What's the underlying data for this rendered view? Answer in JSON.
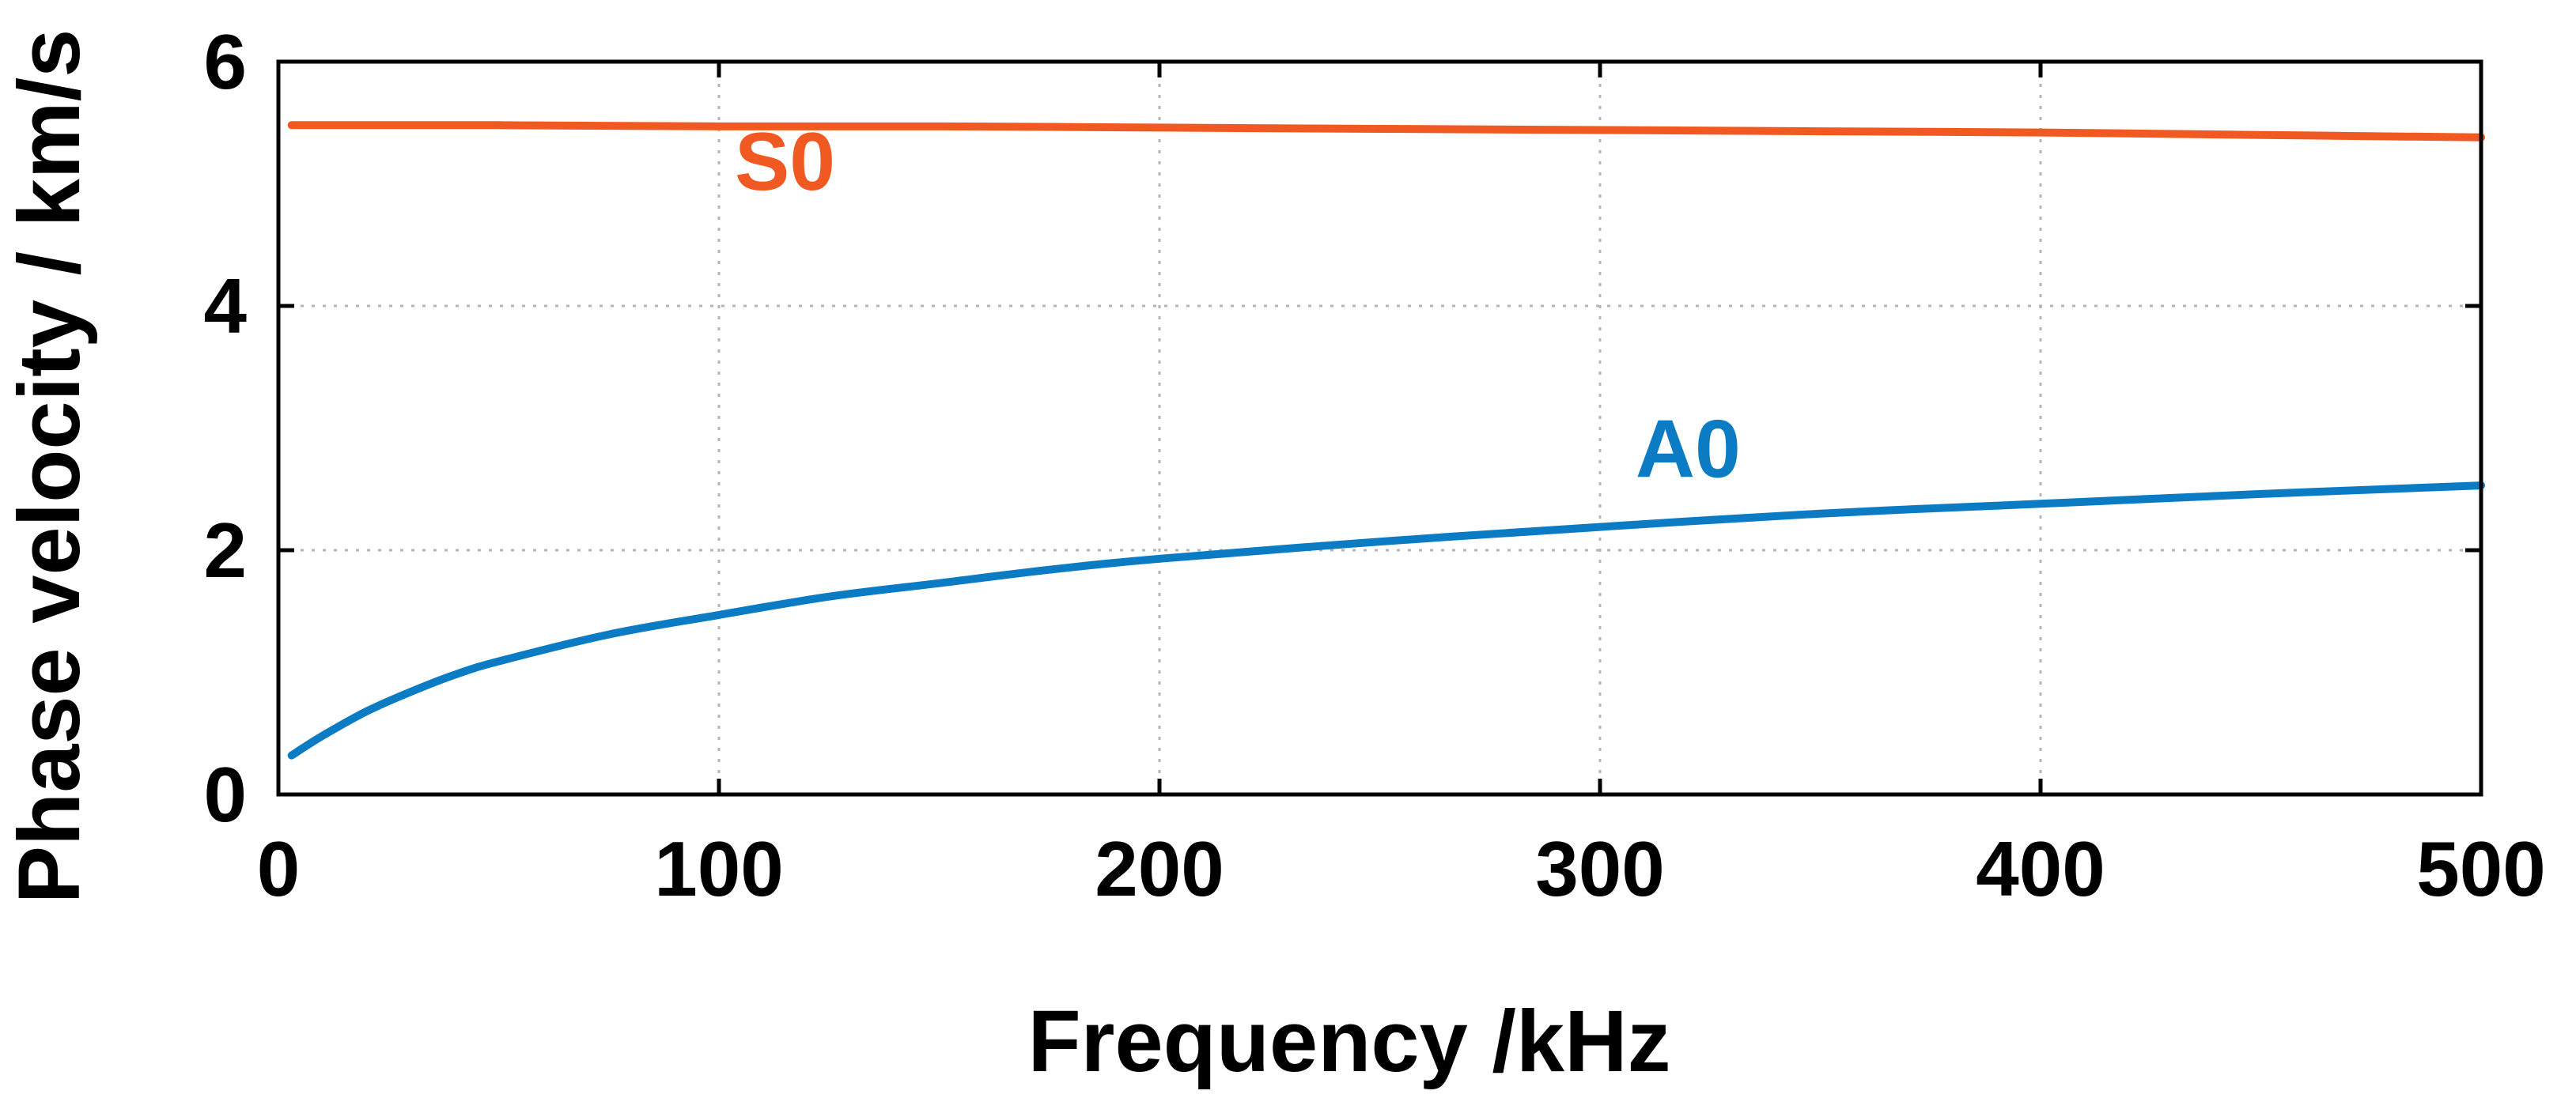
{
  "chart_data": {
    "type": "line",
    "title": "",
    "xlabel": "Frequency /kHz",
    "ylabel": "Phase velocity / km/s",
    "xlim": [
      0,
      500
    ],
    "ylim": [
      0,
      6
    ],
    "xticks": [
      0,
      100,
      200,
      300,
      400,
      500
    ],
    "yticks": [
      0,
      2,
      4,
      6
    ],
    "xtick_labels": [
      "0",
      "100",
      "200",
      "300",
      "400",
      "500"
    ],
    "ytick_labels": [
      "0",
      "2",
      "4",
      "6"
    ],
    "grid": true,
    "legend": "none (inline series labels)",
    "series": [
      {
        "name": "S0",
        "color": "#f05a22",
        "label_at": {
          "x": 115,
          "y": 4.95
        },
        "x": [
          3,
          50,
          100,
          150,
          200,
          250,
          300,
          350,
          400,
          450,
          500
        ],
        "y": [
          5.48,
          5.48,
          5.47,
          5.47,
          5.46,
          5.45,
          5.44,
          5.43,
          5.42,
          5.4,
          5.38
        ]
      },
      {
        "name": "A0",
        "color": "#0b7cc4",
        "label_at": {
          "x": 320,
          "y": 2.6
        },
        "x": [
          3,
          10,
          20,
          30,
          40,
          50,
          75,
          100,
          125,
          150,
          175,
          200,
          250,
          300,
          350,
          400,
          450,
          500
        ],
        "y": [
          0.32,
          0.48,
          0.68,
          0.84,
          0.98,
          1.09,
          1.31,
          1.47,
          1.62,
          1.73,
          1.84,
          1.93,
          2.07,
          2.19,
          2.3,
          2.38,
          2.46,
          2.53
        ]
      }
    ]
  }
}
